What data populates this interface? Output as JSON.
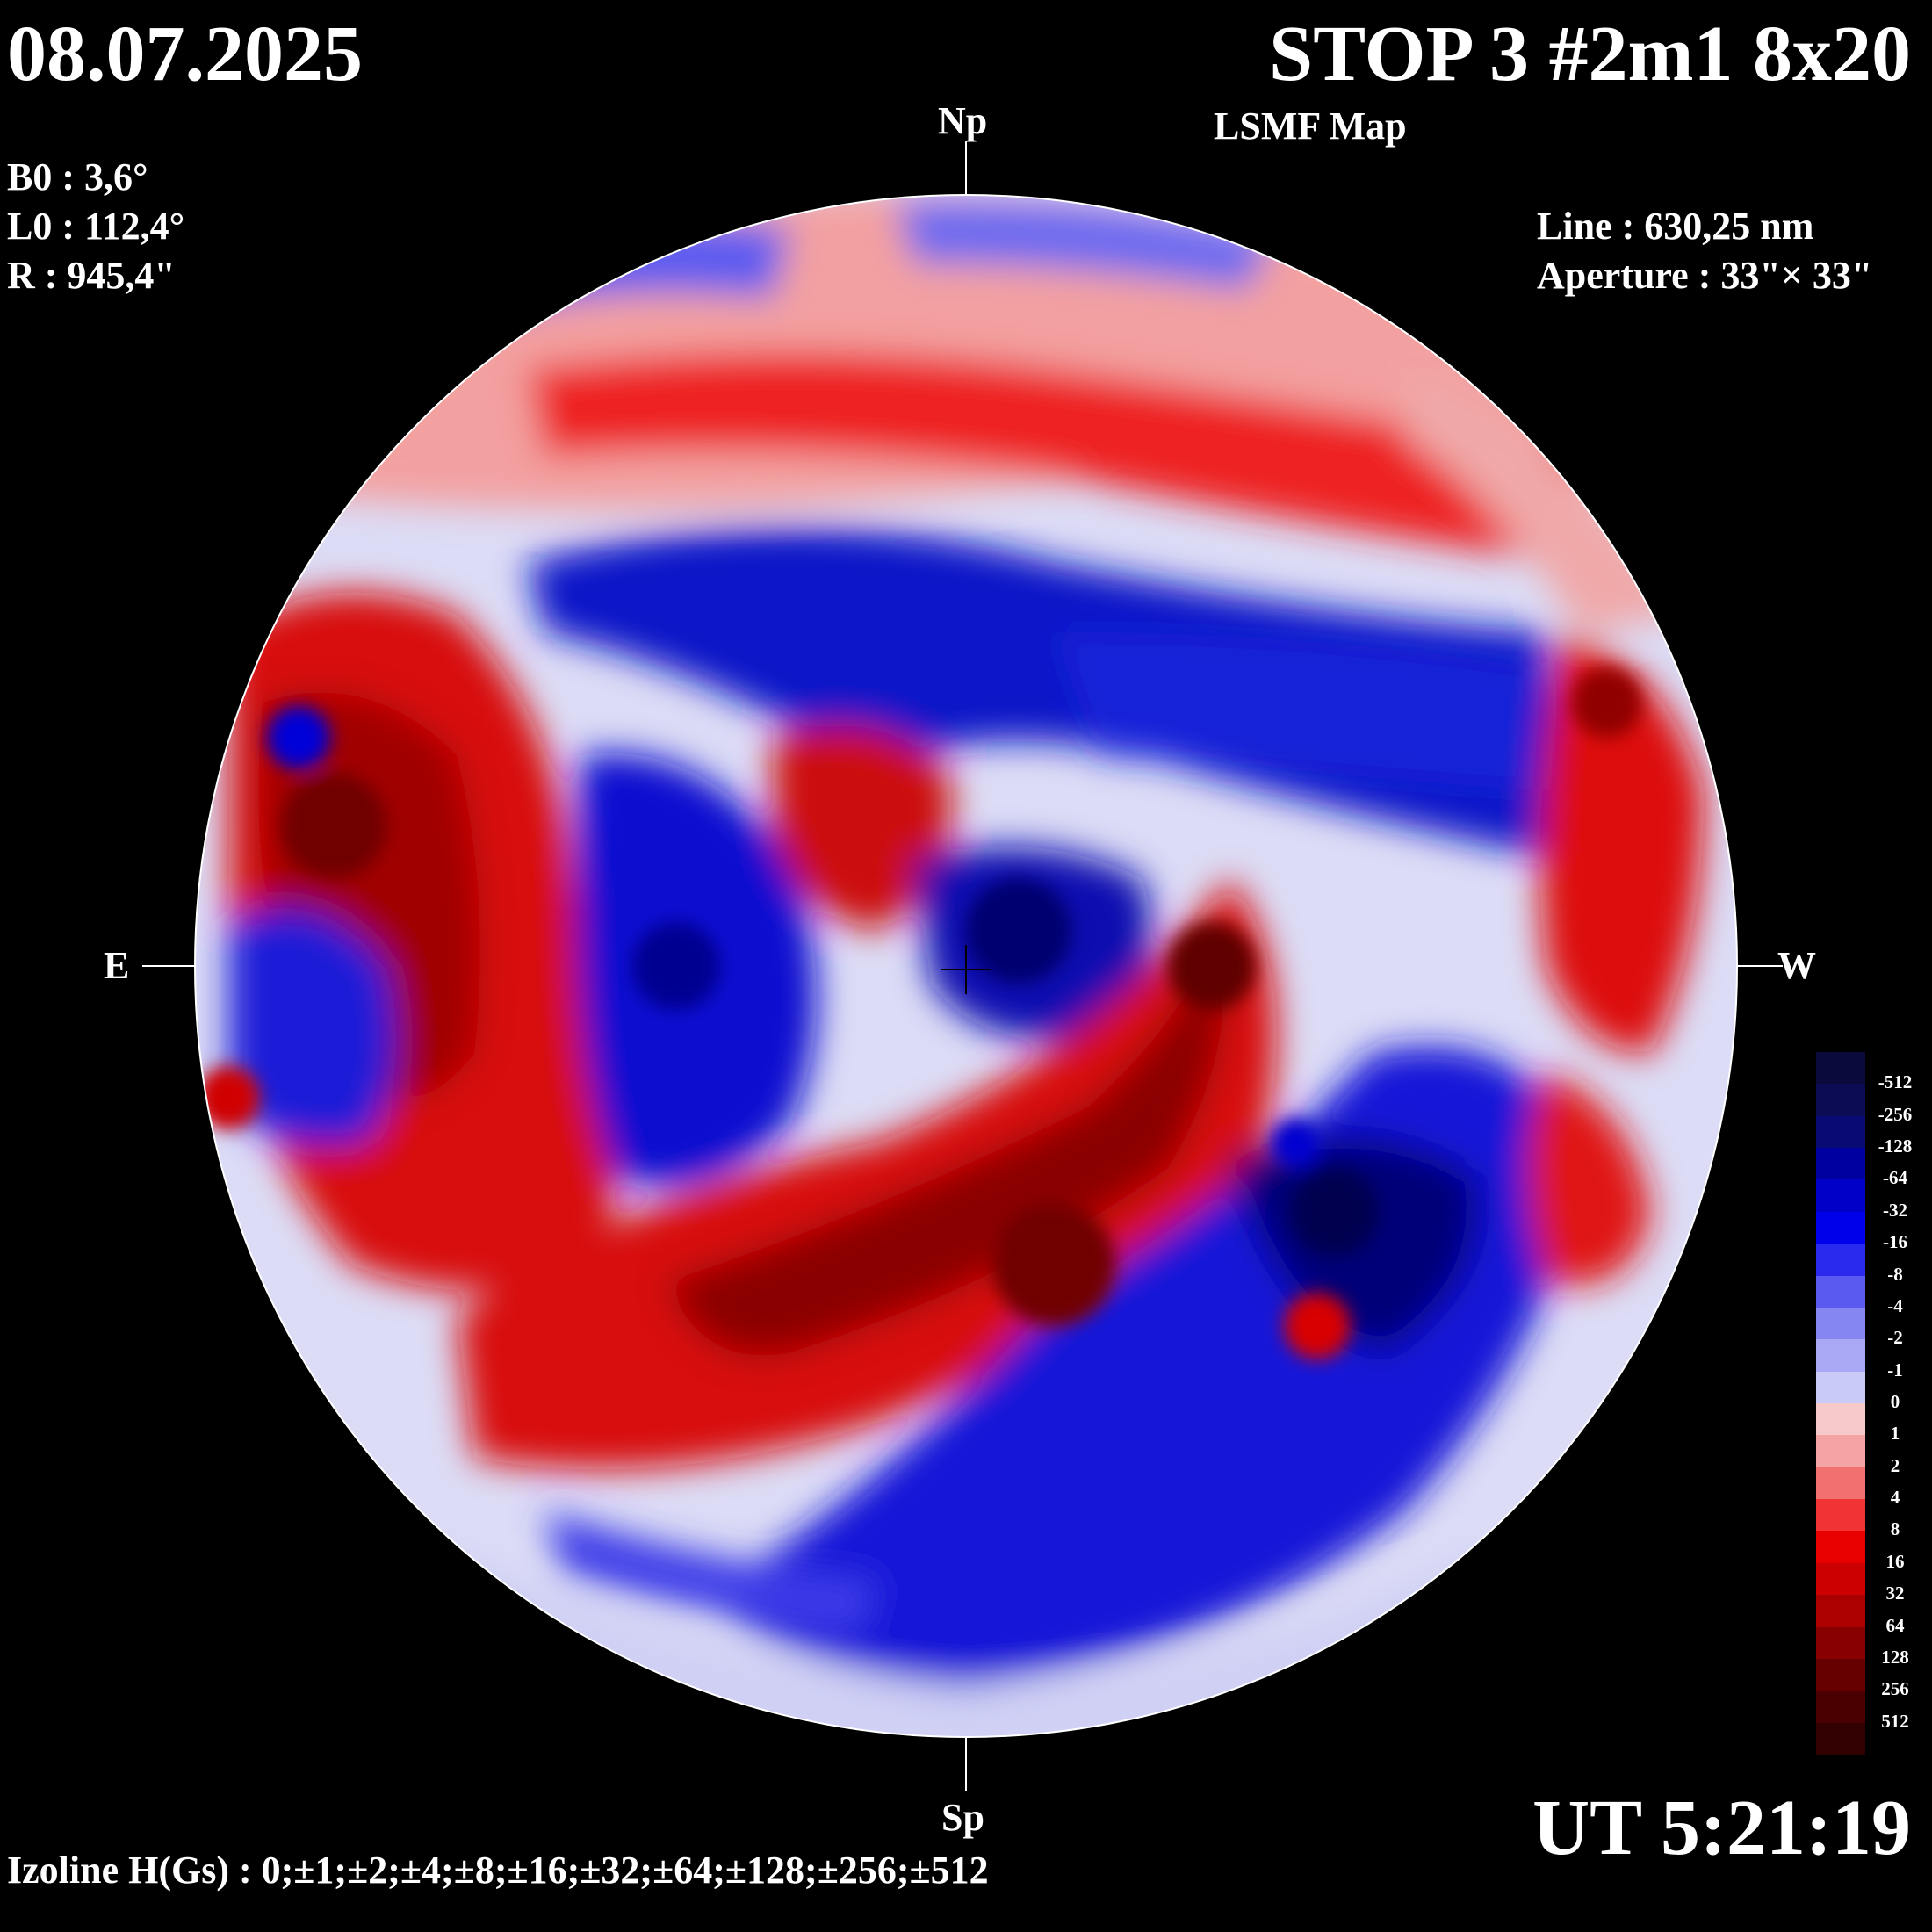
{
  "header": {
    "date": "08.07.2025",
    "title": "STOP 3 #2m1 8x20",
    "subtitle": "LSMF  Map"
  },
  "params": {
    "b0": "B0 : 3,6°",
    "l0": "L0 : 112,4°",
    "r": "R  : 945,4\""
  },
  "instrument": {
    "line": "Line :  630,25 nm",
    "aperture": "Aperture : 33\"× 33\""
  },
  "directions": {
    "north": "Np",
    "south": "Sp",
    "east": "E",
    "west": "W"
  },
  "time": "UT 5:21:19",
  "izoline": "Izoline H(Gs) : 0;±1;±2;±4;±8;±16;±32;±64;±128;±256;±512",
  "colors": {
    "background": "#000000",
    "positive_strong": "#5a0006",
    "positive_mid": "#e00000",
    "positive_weak": "#f6c4c4",
    "negative_weak": "#c6c6f2",
    "negative_mid": "#0000e8",
    "negative_strong": "#000040",
    "zero_contour": "#ffffff"
  },
  "legend": {
    "labels": [
      "-512",
      "-256",
      "-128",
      "-64",
      "-32",
      "-16",
      "-8",
      "-4",
      "-2",
      "-1",
      "0",
      "1",
      "2",
      "4",
      "8",
      "16",
      "32",
      "64",
      "128",
      "256",
      "512"
    ],
    "swatches": [
      "#0a0a3c",
      "#0c0c55",
      "#0a0a75",
      "#0000a0",
      "#0000c8",
      "#0000ea",
      "#2a2aee",
      "#5a5af0",
      "#8686f2",
      "#a8a8f4",
      "#cacaf6",
      "#f6caca",
      "#f4a4a4",
      "#f27070",
      "#f03434",
      "#e80000",
      "#cc0000",
      "#aa0000",
      "#880000",
      "#660000",
      "#4a0000",
      "#320000"
    ]
  }
}
